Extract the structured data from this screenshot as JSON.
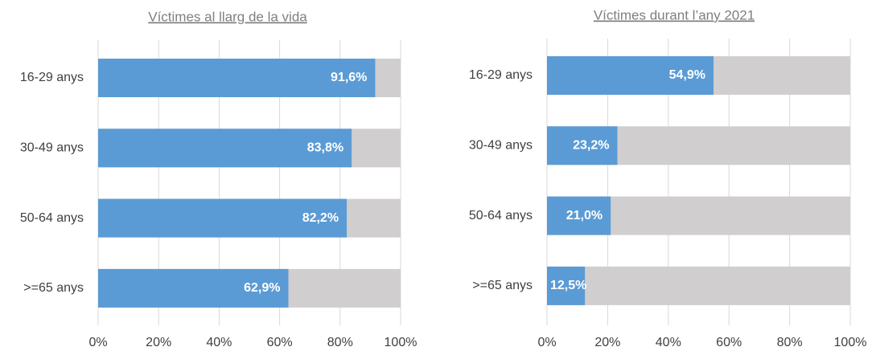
{
  "chart_data": [
    {
      "type": "bar",
      "orientation": "horizontal",
      "title": "Víctimes al llarg de la vida",
      "categories": [
        "16-29 anys",
        "30-49 anys",
        "50-64 anys",
        ">=65 anys"
      ],
      "values": [
        91.6,
        83.8,
        82.2,
        62.9
      ],
      "value_labels": [
        "91,6%",
        "83,8%",
        "82,2%",
        "62,9%"
      ],
      "color": "#5b9bd5",
      "background_color": "#d0cece",
      "xlim": [
        0,
        100
      ],
      "xticks": [
        {
          "value": 0,
          "label": "0%"
        },
        {
          "value": 20,
          "label": "20%"
        },
        {
          "value": 40,
          "label": "40%"
        },
        {
          "value": 60,
          "label": "60%"
        },
        {
          "value": 80,
          "label": "80%"
        },
        {
          "value": 100,
          "label": "100%"
        }
      ],
      "grid": true
    },
    {
      "type": "bar",
      "orientation": "horizontal",
      "title": "Víctimes durant l’any 2021",
      "categories": [
        "16-29 anys",
        "30-49 anys",
        "50-64 anys",
        ">=65 anys"
      ],
      "values": [
        54.9,
        23.2,
        21.0,
        12.5
      ],
      "value_labels": [
        "54,9%",
        "23,2%",
        "21,0%",
        "12,5%"
      ],
      "color": "#5b9bd5",
      "background_color": "#d0cece",
      "xlim": [
        0,
        100
      ],
      "xticks": [
        {
          "value": 0,
          "label": "0%"
        },
        {
          "value": 20,
          "label": "20%"
        },
        {
          "value": 40,
          "label": "40%"
        },
        {
          "value": 60,
          "label": "60%"
        },
        {
          "value": 80,
          "label": "80%"
        },
        {
          "value": 100,
          "label": "100%"
        }
      ],
      "grid": true
    }
  ]
}
